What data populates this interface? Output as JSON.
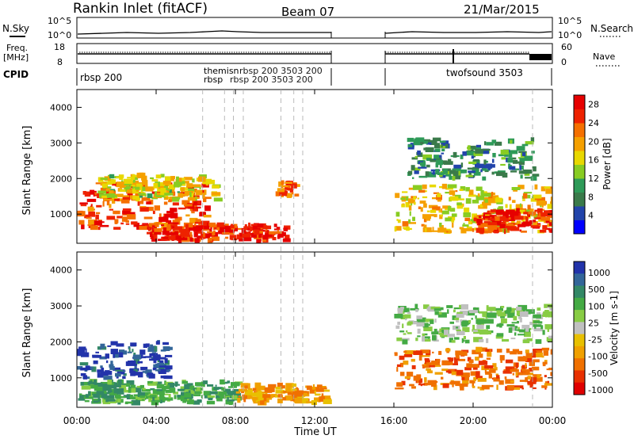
{
  "header": {
    "title": "Rankin Inlet (fitACF)",
    "beam": "Beam 07",
    "date": "21/Mar/2015"
  },
  "strip_labels": {
    "nsky": "N.Sky",
    "nsearch": "N.Search",
    "freq": "Freq.",
    "freq_unit": "[MHz]",
    "nave": "Nave",
    "cpid": "CPID",
    "nsky_ticks": [
      "10^5",
      "10^0"
    ],
    "nsearch_ticks": [
      "10^5",
      "10^0"
    ],
    "freq_ticks": [
      "18",
      "8"
    ],
    "nave_ticks": [
      "60",
      "0"
    ]
  },
  "cpid_labels": [
    {
      "text": "rbsp 200",
      "hour": 0.15
    },
    {
      "text": "themisn",
      "hour": 6.35
    },
    {
      "text": "rbsp",
      "hour": 6.35
    },
    {
      "text": "twofsound 3503",
      "hour": 19.2
    }
  ],
  "cpid_overlap_text": "rbsp 200 3503 200",
  "colors": {
    "power_scale": [
      "#0000ff",
      "#2244aa",
      "#3a7a4a",
      "#2e9a58",
      "#88cc22",
      "#e8d800",
      "#f5a000",
      "#f57000",
      "#ee2200",
      "#e60000"
    ],
    "velocity_scale": [
      "#2233aa",
      "#336699",
      "#338866",
      "#44aa44",
      "#88cc44",
      "#c0c0c0",
      "#e8c000",
      "#f0a000",
      "#f07000",
      "#e83000",
      "#e00000"
    ]
  },
  "chart_data": [
    {
      "type": "heatmap",
      "panel": "power",
      "ylabel": "Slant Range [km]",
      "xlabel": "Time UT",
      "xlim_hours": [
        0,
        24
      ],
      "ylim": [
        180,
        4500
      ],
      "x_tick_labels": [
        "00:00",
        "04:00",
        "08:00",
        "12:00",
        "16:00",
        "20:00",
        "00:00"
      ],
      "y_tick_labels": [
        "1000",
        "2000",
        "3000",
        "4000"
      ],
      "colorbar": {
        "label": "Power [dB]",
        "ticks": [
          "4",
          "8",
          "12",
          "16",
          "20",
          "24",
          "28"
        ]
      },
      "data_gap_hours": [
        13.1,
        16.0
      ],
      "regions": [
        {
          "t0": 0.0,
          "t1": 6.5,
          "r0": 600,
          "r1": 1900,
          "power_db": 26
        },
        {
          "t0": 3.5,
          "t1": 10.5,
          "r0": 250,
          "r1": 700,
          "power_db": 28
        },
        {
          "t0": 1.0,
          "t1": 7.0,
          "r0": 1400,
          "r1": 2100,
          "power_db": 16
        },
        {
          "t0": 10.0,
          "t1": 11.0,
          "r0": 1500,
          "r1": 1900,
          "power_db": 24
        },
        {
          "t0": 16.0,
          "t1": 24.0,
          "r0": 500,
          "r1": 1800,
          "power_db": 18
        },
        {
          "t0": 20.0,
          "t1": 24.0,
          "r0": 500,
          "r1": 1100,
          "power_db": 28
        },
        {
          "t0": 16.5,
          "t1": 23.0,
          "r0": 2000,
          "r1": 3100,
          "power_db": 8
        }
      ]
    },
    {
      "type": "heatmap",
      "panel": "velocity",
      "ylabel": "Slant Range [km]",
      "xlabel": "Time UT",
      "xlim_hours": [
        0,
        24
      ],
      "ylim": [
        180,
        4500
      ],
      "x_tick_labels": [
        "00:00",
        "04:00",
        "08:00",
        "12:00",
        "16:00",
        "20:00",
        "00:00"
      ],
      "y_tick_labels": [
        "1000",
        "2000",
        "3000",
        "4000"
      ],
      "colorbar": {
        "label": "Velocity [m s-1]",
        "ticks": [
          "1000",
          "500",
          "100",
          "25",
          "-25",
          "-100",
          "-500",
          "-1000"
        ]
      },
      "data_gap_hours": [
        13.1,
        16.0
      ],
      "regions": [
        {
          "t0": 0.0,
          "t1": 4.5,
          "r0": 1000,
          "r1": 2000,
          "velocity": 800
        },
        {
          "t0": 0.0,
          "t1": 8.0,
          "r0": 300,
          "r1": 900,
          "velocity": 150
        },
        {
          "t0": 8.0,
          "t1": 12.5,
          "r0": 300,
          "r1": 800,
          "velocity": -150
        },
        {
          "t0": 16.0,
          "t1": 24.0,
          "r0": 700,
          "r1": 1800,
          "velocity": -300
        },
        {
          "t0": 16.0,
          "t1": 24.0,
          "r0": 2000,
          "r1": 3000,
          "velocity": 60
        }
      ]
    }
  ]
}
